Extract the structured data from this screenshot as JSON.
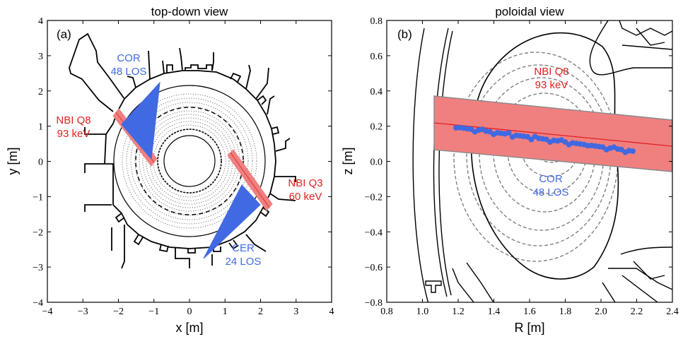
{
  "colors": {
    "beam": "#f08080",
    "beam_edge": "#d93030",
    "los": "#4169e1",
    "axis": "#000000",
    "flux": "#777777",
    "beam_outline": "#888888"
  },
  "panel_a": {
    "title": "top-down view",
    "label": "(a)",
    "xlabel": "x [m]",
    "ylabel": "y [m]",
    "xlim": [
      -4,
      4
    ],
    "ylim": [
      -4,
      4
    ],
    "xticks": [
      "−4",
      "−3",
      "−2",
      "−1",
      "0",
      "1",
      "2",
      "3",
      "4"
    ],
    "yticks": [
      "−4",
      "−3",
      "−2",
      "−1",
      "0",
      "1",
      "2",
      "3",
      "4"
    ],
    "ann_cor": {
      "line1": "COR",
      "line2": "48 LOS"
    },
    "ann_nbi_q8": {
      "line1": "NBI Q8",
      "line2": "93 keV"
    },
    "ann_nbi_q3": {
      "line1": "NBI Q3",
      "line2": "60 keV"
    },
    "ann_cer": {
      "line1": "CER",
      "line2": "24 LOS"
    }
  },
  "panel_b": {
    "title": "poloidal view",
    "label": "(b)",
    "xlabel": "R [m]",
    "ylabel": "z [m]",
    "xlim": [
      0.8,
      2.4
    ],
    "ylim": [
      -0.8,
      0.8
    ],
    "xticks": [
      "0.8",
      "1.0",
      "1.2",
      "1.4",
      "1.6",
      "1.8",
      "2.0",
      "2.2",
      "2.4"
    ],
    "yticks": [
      "−0.8",
      "−0.6",
      "−0.4",
      "−0.2",
      "0.0",
      "0.2",
      "0.4",
      "0.6",
      "0.8"
    ],
    "ann_nbi": {
      "line1": "NBI Q8",
      "line2": "93 keV"
    },
    "ann_cor": {
      "line1": "COR",
      "line2": "48 LOS"
    }
  }
}
